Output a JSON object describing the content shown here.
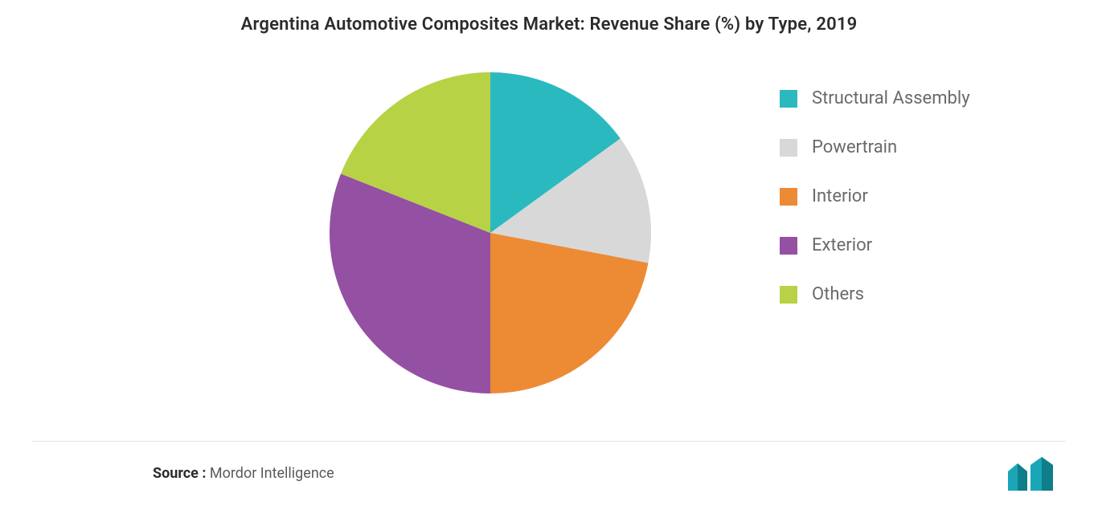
{
  "title": "Argentina Automotive Composites Market: Revenue Share (%) by Type, 2019",
  "source_label": "Source :",
  "source_value": "Mordor Intelligence",
  "chart": {
    "type": "pie",
    "background_color": "#ffffff",
    "title_fontsize": 22,
    "title_color": "#2b2b2b",
    "legend_fontsize": 22,
    "legend_color": "#6a6a6a",
    "legend_swatch_size": 22,
    "radius": 200,
    "start_angle_deg": 0,
    "slices": [
      {
        "label": "Structural Assembly",
        "value": 15,
        "color": "#2bb9c0"
      },
      {
        "label": "Powertrain",
        "value": 13,
        "color": "#d8d8d8"
      },
      {
        "label": "Interior",
        "value": 22,
        "color": "#ed8b34"
      },
      {
        "label": "Exterior",
        "value": 31,
        "color": "#9450a3"
      },
      {
        "label": "Others",
        "value": 19,
        "color": "#b7d245"
      }
    ]
  },
  "logo": {
    "bar_color": "#1aa6b7",
    "bar_color_dark": "#0f7d8a",
    "bg": "#ffffff"
  }
}
